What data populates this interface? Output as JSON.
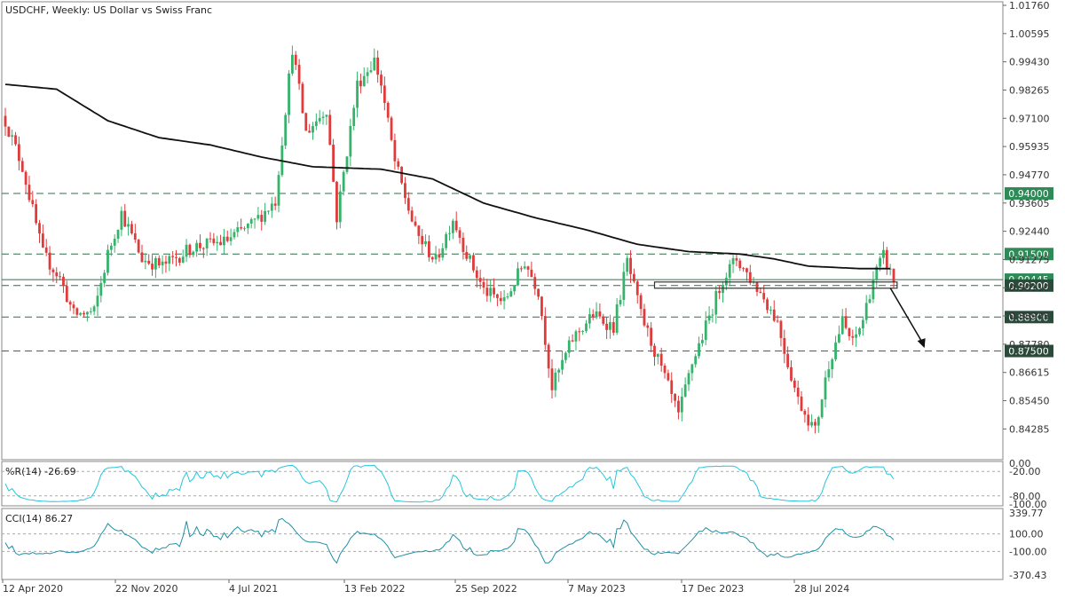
{
  "window": {
    "title": "USDCHF, Weekly:  US Dollar vs Swiss Franc"
  },
  "colors": {
    "bull": "#35b36b",
    "bear": "#e03a3a",
    "ma": "#111111",
    "level_line": "#2f6f4a",
    "green_badge": "#2e8b57",
    "dark_badge": "#2a4a3a",
    "indicator": "#26c6da",
    "cci": "#1f8fa6"
  },
  "chart_data": [
    {
      "type": "line",
      "subtype": "candlestick",
      "symbol": "USDCHF",
      "timeframe": "Weekly",
      "description": "US Dollar vs Swiss Franc",
      "ylim": [
        0.832,
        1.0176
      ],
      "yticks": [
        "1.01760",
        "1.00595",
        "0.99430",
        "0.98265",
        "0.97100",
        "0.95935",
        "0.94770",
        "0.93605",
        "0.92440",
        "0.91275",
        "0.90110",
        "0.88945",
        "0.87780",
        "0.86615",
        "0.85450",
        "0.84285"
      ],
      "xticks": [
        "12 Apr 2020",
        "22 Nov 2020",
        "4 Jul 2021",
        "13 Feb 2022",
        "25 Sep 2022",
        "7 May 2023",
        "17 Dec 2023",
        "28 Jul 2024"
      ],
      "levels": [
        {
          "label": "0.94000",
          "value": 0.94,
          "style": "dashed",
          "badge": "green"
        },
        {
          "label": "0.91500",
          "value": 0.915,
          "style": "dashed",
          "badge": "green"
        },
        {
          "label": "0.90445",
          "value": 0.90445,
          "style": "solid",
          "badge": "green",
          "role": "current price"
        },
        {
          "label": "0.90200",
          "value": 0.902,
          "style": "dashed",
          "badge": "dark"
        },
        {
          "label": "0.88900",
          "value": 0.889,
          "style": "dashed",
          "badge": "dark"
        },
        {
          "label": "0.87500",
          "value": 0.875,
          "style": "dashed",
          "badge": "dark"
        }
      ],
      "overlay": "moving average (black)",
      "annotations": [
        "breakout box near 0.9020",
        "arrow pointing down"
      ]
    },
    {
      "type": "line",
      "label": "%R(14) -26.69",
      "ylim": [
        -100,
        0
      ],
      "yticks": [
        "0.00",
        "-20.00",
        "-80.00",
        "-100.00"
      ],
      "guides": [
        -20,
        -80
      ]
    },
    {
      "type": "line",
      "label": "CCI(14) 86.27",
      "ylim": [
        -370.43,
        339.77
      ],
      "yticks": [
        "339.77",
        "100.00",
        "-100.00",
        "-370.43"
      ],
      "guides": [
        100,
        -100
      ]
    }
  ]
}
